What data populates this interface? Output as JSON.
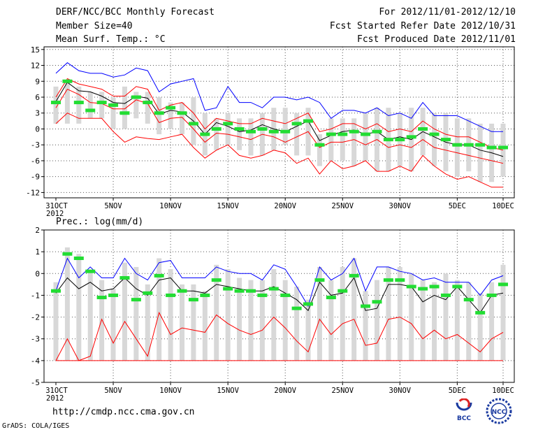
{
  "header": {
    "title": "DERF/NCC/BCC Monthly Forecast",
    "member_size": "Member Size=40",
    "variable": "Mean Surf. Temp.: °C",
    "period": "For 2012/11/01-2012/12/10",
    "fcst_started": "Fcst Started Refer Date 2012/10/31",
    "fcst_produced": "Fcst Produced Date 2012/11/01"
  },
  "footer": {
    "url": "http://cmdp.ncc.cma.gov.cn",
    "grads": "GrADS: COLA/IGES",
    "logo_bcc": "BCC",
    "logo_ncc": "NCC"
  },
  "colors": {
    "box": "#d8d8d8",
    "max_line": "#0000ff",
    "min_line": "#ff0000",
    "mean_line": "#000000",
    "marker": "#22dd33"
  },
  "chart_data": [
    {
      "type": "line",
      "name": "temperature",
      "title": "Mean Surf. Temp.: °C",
      "xlabel": "",
      "ylabel": "",
      "ylim": [
        -13,
        15.5
      ],
      "yticks": [
        15,
        12,
        9,
        6,
        3,
        0,
        -3,
        -6,
        -9,
        -12
      ],
      "x_ticks": [
        "31OCT",
        "5NOV",
        "10NOV",
        "15NOV",
        "20NOV",
        "25NOV",
        "30NOV",
        "5DEC",
        "10DEC"
      ],
      "x_sublabel": "2012",
      "x": [
        1,
        2,
        3,
        4,
        5,
        6,
        7,
        8,
        9,
        10,
        11,
        12,
        13,
        14,
        15,
        16,
        17,
        18,
        19,
        20,
        21,
        22,
        23,
        24,
        25,
        26,
        27,
        28,
        29,
        30,
        31,
        32,
        33,
        34,
        35,
        36,
        37,
        38,
        39,
        40
      ],
      "series": [
        {
          "name": "max",
          "values": [
            10.5,
            12.5,
            11,
            10.5,
            10.5,
            9.8,
            10.2,
            11.5,
            11,
            7,
            8.5,
            9,
            9.5,
            3.5,
            4,
            8,
            5,
            5,
            4,
            6,
            6,
            5.5,
            6,
            5,
            2,
            3.5,
            3.5,
            3,
            4,
            2.5,
            3,
            2,
            5,
            2.5,
            2.5,
            2.5,
            1.5,
            0.5,
            -0.5,
            -0.5
          ]
        },
        {
          "name": "upper",
          "values": [
            6,
            9.5,
            8.5,
            8,
            7.5,
            6.2,
            6.2,
            8,
            7.5,
            3.5,
            4.5,
            5,
            3,
            0,
            2,
            1.5,
            1,
            1,
            2,
            1.5,
            1,
            2,
            3,
            -0.5,
            0,
            1,
            1,
            0,
            1,
            -0.5,
            0,
            -0.5,
            1.5,
            0,
            -1,
            -1.5,
            -1.5,
            -2.5,
            -3.5,
            -4
          ]
        },
        {
          "name": "mean",
          "values": [
            5.2,
            8.8,
            7.2,
            7,
            6.2,
            5,
            4.8,
            6.2,
            5.8,
            2.8,
            3.5,
            3.2,
            1.5,
            -1,
            1.2,
            0.5,
            -0.5,
            -0.2,
            0.8,
            0,
            -0.5,
            0.5,
            1.5,
            -2.2,
            -1.2,
            -0.5,
            -0.2,
            -1,
            -0.5,
            -2,
            -1.5,
            -2,
            -0.5,
            -1.5,
            -2.5,
            -3,
            -3,
            -4,
            -4.5,
            -5.2
          ]
        },
        {
          "name": "lower",
          "values": [
            4,
            7.5,
            6.5,
            5,
            4.8,
            3.8,
            3.8,
            5.5,
            4.8,
            1.2,
            2,
            2.2,
            0,
            -2.5,
            -0.8,
            -1,
            -1.5,
            -2,
            -1,
            -1.5,
            -2.5,
            -1.5,
            -0.5,
            -3.5,
            -2.5,
            -2.5,
            -2,
            -3,
            -2,
            -3.5,
            -3,
            -3.5,
            -2,
            -3.5,
            -4,
            -4.5,
            -5,
            -5.5,
            -6,
            -6.5
          ]
        },
        {
          "name": "min",
          "values": [
            1,
            3,
            2,
            2,
            2,
            -0.5,
            -2.5,
            -1.5,
            -1.8,
            -2,
            -1.5,
            -1,
            -3.5,
            -5.5,
            -4,
            -3,
            -5,
            -5.5,
            -5,
            -4,
            -4.5,
            -6.5,
            -5.5,
            -8.5,
            -6,
            -7.5,
            -7,
            -6,
            -8,
            -8,
            -7,
            -8,
            -5,
            -7,
            -8.5,
            -9.5,
            -9,
            -10,
            -11,
            -11
          ]
        }
      ],
      "boxes": {
        "top": [
          8,
          9,
          8,
          7,
          7,
          6,
          8,
          7,
          7,
          6,
          5,
          5,
          6,
          3,
          2,
          3,
          2,
          2,
          3,
          4,
          4,
          3,
          4,
          -1,
          2,
          2,
          2,
          3,
          4,
          4,
          3,
          4,
          4,
          3,
          3,
          2,
          2,
          1,
          1,
          1
        ],
        "bottom": [
          1,
          1,
          1,
          2,
          2,
          0,
          0,
          2,
          1,
          -1,
          0,
          -1,
          -3,
          -5,
          -4,
          -3,
          -4,
          -5,
          -5,
          -4,
          -3,
          -5,
          -5,
          -7,
          -6,
          -6,
          -7,
          -6,
          -8,
          -8,
          -7,
          -8,
          -5,
          -7,
          -8,
          -9,
          -8,
          -10,
          -10,
          -9
        ]
      },
      "markers": [
        5,
        9,
        5,
        3.5,
        5,
        4.5,
        3,
        6,
        5,
        3,
        4,
        3,
        1,
        -1,
        0,
        1,
        0,
        -0.5,
        0,
        -0.5,
        -0.5,
        1,
        1.5,
        -3,
        -1,
        -1,
        -0.5,
        -1,
        -0.5,
        -2,
        -2,
        -1.5,
        0,
        -1,
        -2,
        -3,
        -3,
        -3,
        -3.5,
        -3.5
      ]
    },
    {
      "type": "line",
      "name": "precipitation",
      "title": "Prec.: log(mm/d)",
      "xlabel": "",
      "ylabel": "",
      "ylim": [
        -5,
        2
      ],
      "yticks": [
        2,
        1,
        0,
        -1,
        -2,
        -3,
        -4,
        -5
      ],
      "x_ticks": [
        "31OCT",
        "5NOV",
        "10NOV",
        "15NOV",
        "20NOV",
        "25NOV",
        "30NOV",
        "5DEC",
        "10DEC"
      ],
      "x_sublabel": "2012",
      "x": [
        1,
        2,
        3,
        4,
        5,
        6,
        7,
        8,
        9,
        10,
        11,
        12,
        13,
        14,
        15,
        16,
        17,
        18,
        19,
        20,
        21,
        22,
        23,
        24,
        25,
        26,
        27,
        28,
        29,
        30,
        31,
        32,
        33,
        34,
        35,
        36,
        37,
        38,
        39,
        40
      ],
      "series": [
        {
          "name": "max",
          "values": [
            -0.8,
            0.7,
            -0.2,
            0.3,
            -0.2,
            -0.2,
            0.7,
            0,
            -0.3,
            0.5,
            0.6,
            -0.2,
            -0.2,
            -0.2,
            0.3,
            0.1,
            0,
            0,
            -0.3,
            0.4,
            0.2,
            -0.6,
            -1.5,
            0.3,
            -0.3,
            0,
            0.7,
            -0.8,
            0.3,
            0.3,
            0.1,
            0,
            -0.3,
            -0.2,
            -0.4,
            -0.4,
            -0.4,
            -1,
            -0.3,
            -0.1
          ]
        },
        {
          "name": "mean",
          "values": [
            -0.9,
            -0.2,
            -0.7,
            -0.4,
            -0.8,
            -0.7,
            -0.2,
            -0.7,
            -1,
            -0.3,
            -0.2,
            -0.8,
            -0.8,
            -0.9,
            -0.5,
            -0.6,
            -0.7,
            -0.8,
            -0.8,
            -0.6,
            -0.9,
            -1.2,
            -1.7,
            -0.4,
            -1,
            -0.9,
            -0.2,
            -1.7,
            -1.6,
            -0.5,
            -0.5,
            -0.6,
            -1.3,
            -1,
            -1.2,
            -0.6,
            -1.2,
            -1.8,
            -1,
            -0.9
          ]
        },
        {
          "name": "min",
          "values": [
            -4,
            -3,
            -4,
            -3.8,
            -2.1,
            -3.2,
            -2.2,
            -3,
            -3.8,
            -1.8,
            -2.8,
            -2.5,
            -2.6,
            -2.7,
            -1.9,
            -2.3,
            -2.6,
            -2.8,
            -2.6,
            -2,
            -2.5,
            -3.1,
            -3.6,
            -2.1,
            -2.8,
            -2.3,
            -2.1,
            -3.3,
            -3.2,
            -2.1,
            -2,
            -2.3,
            -3,
            -2.6,
            -3,
            -2.8,
            -3.2,
            -3.6,
            -3,
            -2.7
          ]
        },
        {
          "name": "floor",
          "values": [
            -4,
            -4,
            -4,
            -4,
            -4,
            -4,
            -4,
            -4,
            -4,
            -4,
            -4,
            -4,
            -4,
            -4,
            -4,
            -4,
            -4,
            -4,
            -4,
            -4,
            -4,
            -4,
            -4,
            -4,
            -4,
            -4,
            -4,
            -4,
            -4,
            -4,
            -4,
            -4,
            -4,
            -4,
            -4,
            -4,
            -4,
            -4,
            -4,
            -4
          ]
        }
      ],
      "boxes": {
        "top": [
          -0.4,
          1.2,
          0.9,
          0.1,
          -0.3,
          -0.7,
          0.5,
          0.3,
          -0.5,
          0.7,
          0.2,
          -0.5,
          -0.5,
          -0.8,
          0.4,
          0.2,
          -0.2,
          -0.3,
          -0.3,
          0.2,
          -0.3,
          -0.6,
          -1.2,
          0.3,
          -0.3,
          0.3,
          0.7,
          -0.8,
          -0.3,
          0.3,
          0.3,
          0,
          -0.3,
          -0.4,
          0,
          -0.3,
          -0.4,
          -0.9,
          -0.4,
          0.4
        ]
      },
      "box_bottom": -4,
      "markers": [
        -0.8,
        0.9,
        0.7,
        0.1,
        -1.1,
        -1,
        -0.2,
        -1.2,
        -0.9,
        -0.1,
        -1,
        -0.8,
        -1.2,
        -1,
        -0.3,
        -0.7,
        -0.8,
        -0.8,
        -1,
        -0.7,
        -1,
        -1.6,
        -1.4,
        -0.3,
        -1.1,
        -0.8,
        -0.1,
        -1.5,
        -1.3,
        -0.3,
        -0.3,
        -0.6,
        -0.7,
        -0.6,
        -1,
        -0.6,
        -1.2,
        -1.8,
        -1,
        -0.5
      ]
    }
  ]
}
